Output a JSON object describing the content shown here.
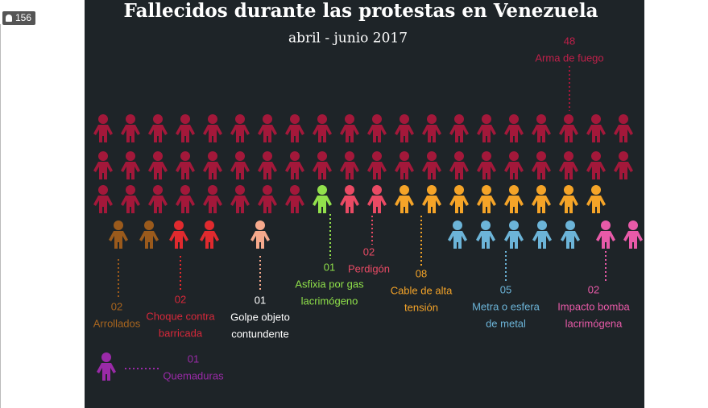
{
  "viewers": "156",
  "title": "Fallecidos durante las protestas en Venezuela",
  "subtitle": "abril - junio 2017",
  "groups": [
    {
      "value": 48,
      "value_label": "48",
      "name": [
        "Arma de fuego"
      ],
      "color": "#a3183a",
      "text_color": "#c0204a"
    },
    {
      "value": 2,
      "value_label": "02",
      "name": [
        "Arrollados"
      ],
      "color": "#9a5a1c",
      "text_color": "#a8651e"
    },
    {
      "value": 2,
      "value_label": "02",
      "name": [
        "Choque contra",
        "barricada"
      ],
      "color": "#e02a2e",
      "text_color": "#d8283a"
    },
    {
      "value": 1,
      "value_label": "01",
      "name": [
        "Golpe objeto",
        "contundente"
      ],
      "color": "#f6a98c",
      "text_color": "#ffffff"
    },
    {
      "value": 1,
      "value_label": "01",
      "name": [
        "Asfixia por gas",
        "lacrimógeno"
      ],
      "color": "#92e04c",
      "text_color": "#8fe04a"
    },
    {
      "value": 2,
      "value_label": "02",
      "name": [
        "Perdigón"
      ],
      "color": "#ea4a64",
      "text_color": "#e84a64"
    },
    {
      "value": 8,
      "value_label": "08",
      "name": [
        "Cable de alta",
        "tensión"
      ],
      "color": "#f5a428",
      "text_color": "#f5a428"
    },
    {
      "value": 5,
      "value_label": "05",
      "name": [
        "Metra o esfera",
        "de metal"
      ],
      "color": "#6cb4d8",
      "text_color": "#6cb4d8"
    },
    {
      "value": 2,
      "value_label": "02",
      "name": [
        "Impacto bomba",
        "lacrimógena"
      ],
      "color": "#e85aa8",
      "text_color": "#e85aa8"
    },
    {
      "value": 1,
      "value_label": "01",
      "name": [
        "Quemaduras"
      ],
      "color": "#9a2aa8",
      "text_color": "#9a2aa8"
    }
  ]
}
